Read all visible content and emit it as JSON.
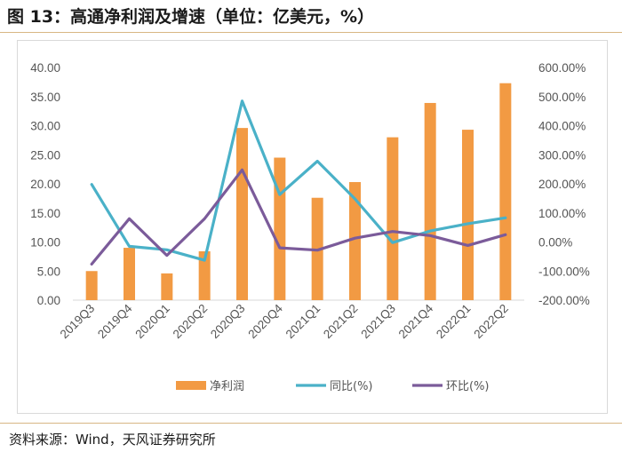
{
  "header": {
    "title": "图 13：高通净利润及增速（单位：亿美元，%）"
  },
  "footer": {
    "source": "资料来源：Wind，天风证券研究所"
  },
  "chart_data": {
    "type": "bar",
    "categories": [
      "2019Q3",
      "2019Q4",
      "2020Q1",
      "2020Q2",
      "2020Q3",
      "2020Q4",
      "2021Q1",
      "2021Q2",
      "2021Q3",
      "2021Q4",
      "2022Q1",
      "2022Q2"
    ],
    "series": [
      {
        "name": "净利润",
        "type": "bar",
        "axis": "left",
        "color": "#f29a43",
        "values": [
          5.0,
          9.0,
          4.6,
          8.4,
          29.6,
          24.5,
          17.6,
          20.3,
          28.0,
          33.9,
          29.3,
          37.3
        ]
      },
      {
        "name": "同比(%)",
        "type": "line",
        "axis": "right",
        "color": "#4ab1c8",
        "values": [
          198,
          -15,
          -27,
          -63,
          485,
          163,
          278,
          148,
          -2,
          38,
          63,
          83
        ]
      },
      {
        "name": "环比(%)",
        "type": "line",
        "axis": "right",
        "color": "#7b5b9a",
        "values": [
          -76,
          80,
          -46,
          80,
          248,
          -20,
          -28,
          13,
          36,
          22,
          -12,
          25
        ]
      }
    ],
    "y_left": {
      "min": 0,
      "max": 40,
      "ticks": [
        "0.00",
        "5.00",
        "10.00",
        "15.00",
        "20.00",
        "25.00",
        "30.00",
        "35.00",
        "40.00"
      ]
    },
    "y_right": {
      "min": -200,
      "max": 600,
      "ticks": [
        "-200.00%",
        "-100.00%",
        "0.00%",
        "100.00%",
        "200.00%",
        "300.00%",
        "400.00%",
        "500.00%",
        "600.00%"
      ]
    },
    "grid": false,
    "legend_position": "bottom"
  }
}
